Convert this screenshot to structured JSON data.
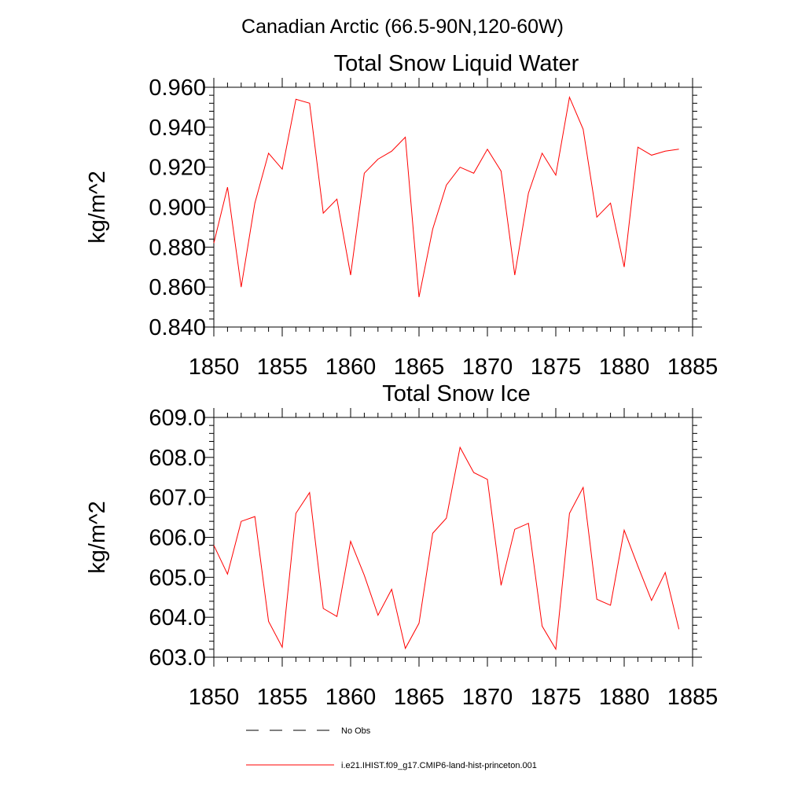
{
  "suptitle": "Canadian Arctic (66.5-90N,120-60W)",
  "legend": [
    {
      "label": "No Obs",
      "color": "#000000",
      "dashed": true
    },
    {
      "label": "i.e21.IHIST.f09_g17.CMIP6-land-hist-princeton.001",
      "color": "#ff0000",
      "dashed": false
    }
  ],
  "chart_data": [
    {
      "type": "line",
      "title": "Total Snow Liquid Water",
      "xlabel": "",
      "ylabel": "kg/m^2",
      "xlim": [
        1850,
        1885
      ],
      "ylim": [
        0.84,
        0.96
      ],
      "xticks": [
        "1850",
        "1855",
        "1860",
        "1865",
        "1870",
        "1875",
        "1880",
        "1885"
      ],
      "yticks": [
        "0.840",
        "0.860",
        "0.880",
        "0.900",
        "0.920",
        "0.940",
        "0.960"
      ],
      "series": [
        {
          "color": "#ff0000",
          "x": [
            1850,
            1851,
            1852,
            1853,
            1854,
            1855,
            1856,
            1857,
            1858,
            1859,
            1860,
            1861,
            1862,
            1863,
            1864,
            1865,
            1866,
            1867,
            1868,
            1869,
            1870,
            1871,
            1872,
            1873,
            1874,
            1875,
            1876,
            1877,
            1878,
            1879,
            1880,
            1881,
            1882,
            1883,
            1884
          ],
          "y": [
            0.882,
            0.91,
            0.86,
            0.902,
            0.927,
            0.919,
            0.954,
            0.952,
            0.897,
            0.904,
            0.866,
            0.917,
            0.924,
            0.928,
            0.935,
            0.855,
            0.889,
            0.911,
            0.92,
            0.917,
            0.929,
            0.918,
            0.866,
            0.907,
            0.927,
            0.916,
            0.955,
            0.939,
            0.895,
            0.902,
            0.87,
            0.93,
            0.926,
            0.928,
            0.929
          ]
        }
      ]
    },
    {
      "type": "line",
      "title": "Total Snow Ice",
      "xlabel": "",
      "ylabel": "kg/m^2",
      "xlim": [
        1850,
        1885
      ],
      "ylim": [
        603.0,
        609.0
      ],
      "xticks": [
        "1850",
        "1855",
        "1860",
        "1865",
        "1870",
        "1875",
        "1880",
        "1885"
      ],
      "yticks": [
        "603.0",
        "604.0",
        "605.0",
        "606.0",
        "607.0",
        "608.0",
        "609.0"
      ],
      "series": [
        {
          "color": "#ff0000",
          "x": [
            1850,
            1851,
            1852,
            1853,
            1854,
            1855,
            1856,
            1857,
            1858,
            1859,
            1860,
            1861,
            1862,
            1863,
            1864,
            1865,
            1866,
            1867,
            1868,
            1869,
            1870,
            1871,
            1872,
            1873,
            1874,
            1875,
            1876,
            1877,
            1878,
            1879,
            1880,
            1881,
            1882,
            1883,
            1884
          ],
          "y": [
            605.8,
            605.08,
            606.4,
            606.52,
            603.9,
            603.25,
            606.6,
            607.12,
            604.22,
            604.02,
            605.9,
            605.05,
            604.05,
            604.7,
            603.22,
            603.85,
            606.1,
            606.48,
            608.25,
            607.62,
            607.45,
            604.8,
            606.2,
            606.35,
            603.78,
            603.2,
            606.6,
            607.25,
            604.45,
            604.3,
            606.18,
            605.28,
            604.42,
            605.12,
            603.7
          ]
        }
      ]
    }
  ]
}
